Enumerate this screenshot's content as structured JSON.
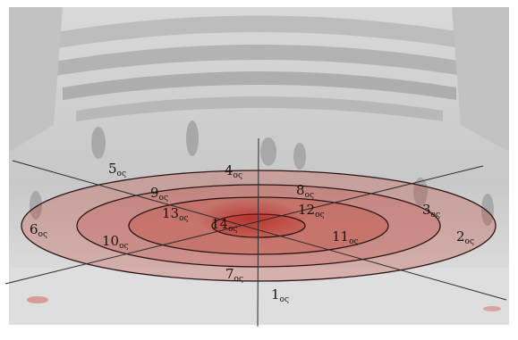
{
  "diagram": {
    "ring_suffix": "ος",
    "labels": [
      {
        "id": "1",
        "number": "1"
      },
      {
        "id": "2",
        "number": "2"
      },
      {
        "id": "3",
        "number": "3"
      },
      {
        "id": "4",
        "number": "4"
      },
      {
        "id": "5",
        "number": "5"
      },
      {
        "id": "6",
        "number": "6"
      },
      {
        "id": "7",
        "number": "7"
      },
      {
        "id": "8",
        "number": "8"
      },
      {
        "id": "9",
        "number": "9"
      },
      {
        "id": "10",
        "number": "10"
      },
      {
        "id": "11",
        "number": "11"
      },
      {
        "id": "12",
        "number": "12"
      },
      {
        "id": "13",
        "number": "13"
      },
      {
        "id": "14",
        "number": "14"
      }
    ],
    "colors": {
      "ring_fill": "#c0392b",
      "ring_stroke": "#2a1414",
      "axis_line": "#2b2b2b",
      "background_photo": "#cfcfcf"
    }
  }
}
